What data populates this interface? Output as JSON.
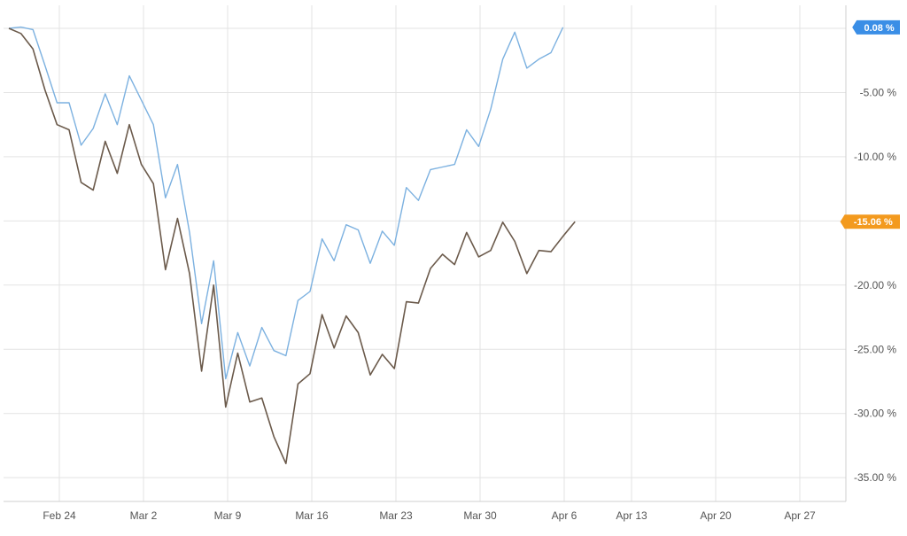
{
  "chart_data": {
    "type": "line",
    "title": "",
    "xlabel": "",
    "ylabel": "",
    "ylim": [
      -37,
      1.5
    ],
    "grid": true,
    "x_ticks": [
      "Feb 24",
      "Mar 2",
      "Mar 9",
      "Mar 16",
      "Mar 23",
      "Mar 30",
      "Apr 6",
      "Apr 13",
      "Apr 20",
      "Apr 27"
    ],
    "y_ticks": [
      -5,
      -10,
      -15,
      -20,
      -25,
      -30,
      -35
    ],
    "y_tick_labels": [
      "-5.00 %",
      "-10.00 %",
      "-15.00 %",
      "-20.00 %",
      "-25.00 %",
      "-30.00 %",
      "-35.00 %"
    ],
    "x_start": "2020-02-21",
    "x_axis_dates": [
      "2020-02-24",
      "2020-03-02",
      "2020-03-09",
      "2020-03-16",
      "2020-03-23",
      "2020-03-30",
      "2020-04-06",
      "2020-04-13",
      "2020-04-20",
      "2020-04-27"
    ],
    "series": [
      {
        "color": "#7cb1e0",
        "last_label": "0.08 %",
        "badge_color": "#3a8ee6",
        "points": [
          [
            "2020-02-19",
            0
          ],
          [
            "2020-02-20",
            0.1
          ],
          [
            "2020-02-21",
            -0.1
          ],
          [
            "2020-02-22",
            -2.9
          ],
          [
            "2020-02-23",
            -5.8
          ],
          [
            "2020-02-24",
            -5.8
          ],
          [
            "2020-02-25",
            -9.1
          ],
          [
            "2020-02-26",
            -7.8
          ],
          [
            "2020-02-27",
            -5.1
          ],
          [
            "2020-02-28",
            -7.5
          ],
          [
            "2020-02-29",
            -3.7
          ],
          [
            "2020-03-01",
            -5.6
          ],
          [
            "2020-03-02",
            -7.5
          ],
          [
            "2020-03-03",
            -13.2
          ],
          [
            "2020-03-04",
            -10.6
          ],
          [
            "2020-03-05",
            -15.9
          ],
          [
            "2020-03-06",
            -23.0
          ],
          [
            "2020-03-07",
            -18.1
          ],
          [
            "2020-03-08",
            -27.3
          ],
          [
            "2020-03-09",
            -23.7
          ],
          [
            "2020-03-10",
            -26.3
          ],
          [
            "2020-03-11",
            -23.3
          ],
          [
            "2020-03-12",
            -25.1
          ],
          [
            "2020-03-13",
            -25.5
          ],
          [
            "2020-03-14",
            -21.2
          ],
          [
            "2020-03-15",
            -20.5
          ],
          [
            "2020-03-16",
            -16.4
          ],
          [
            "2020-03-17",
            -18.1
          ],
          [
            "2020-03-18",
            -15.3
          ],
          [
            "2020-03-19",
            -15.7
          ],
          [
            "2020-03-20",
            -18.3
          ],
          [
            "2020-03-21",
            -15.8
          ],
          [
            "2020-03-22",
            -16.9
          ],
          [
            "2020-03-23",
            -12.4
          ],
          [
            "2020-03-24",
            -13.4
          ],
          [
            "2020-03-25",
            -11.0
          ],
          [
            "2020-03-26",
            -10.8
          ],
          [
            "2020-03-27",
            -10.6
          ],
          [
            "2020-03-28",
            -7.9
          ],
          [
            "2020-03-29",
            -9.2
          ],
          [
            "2020-03-30",
            -6.3
          ],
          [
            "2020-03-31",
            -2.4
          ],
          [
            "2020-04-01",
            -0.3
          ],
          [
            "2020-04-02",
            -3.1
          ],
          [
            "2020-04-03",
            -2.4
          ],
          [
            "2020-04-04",
            -1.9
          ],
          [
            "2020-04-05",
            0.08
          ]
        ]
      },
      {
        "color": "#6b5a4b",
        "last_label": "-15.06 %",
        "badge_color": "#f39a1e",
        "points": [
          [
            "2020-02-19",
            0
          ],
          [
            "2020-02-20",
            -0.4
          ],
          [
            "2020-02-21",
            -1.6
          ],
          [
            "2020-02-22",
            -4.8
          ],
          [
            "2020-02-23",
            -7.5
          ],
          [
            "2020-02-24",
            -7.9
          ],
          [
            "2020-02-25",
            -12.0
          ],
          [
            "2020-02-26",
            -12.6
          ],
          [
            "2020-02-27",
            -8.8
          ],
          [
            "2020-02-28",
            -11.3
          ],
          [
            "2020-02-29",
            -7.5
          ],
          [
            "2020-03-01",
            -10.6
          ],
          [
            "2020-03-02",
            -12.1
          ],
          [
            "2020-03-03",
            -18.8
          ],
          [
            "2020-03-04",
            -14.8
          ],
          [
            "2020-03-05",
            -19.1
          ],
          [
            "2020-03-06",
            -26.7
          ],
          [
            "2020-03-07",
            -20.0
          ],
          [
            "2020-03-08",
            -29.5
          ],
          [
            "2020-03-09",
            -25.3
          ],
          [
            "2020-03-10",
            -29.1
          ],
          [
            "2020-03-11",
            -28.8
          ],
          [
            "2020-03-12",
            -31.8
          ],
          [
            "2020-03-13",
            -33.9
          ],
          [
            "2020-03-14",
            -27.7
          ],
          [
            "2020-03-15",
            -26.9
          ],
          [
            "2020-03-16",
            -22.3
          ],
          [
            "2020-03-17",
            -24.9
          ],
          [
            "2020-03-18",
            -22.4
          ],
          [
            "2020-03-19",
            -23.7
          ],
          [
            "2020-03-20",
            -27.0
          ],
          [
            "2020-03-21",
            -25.4
          ],
          [
            "2020-03-22",
            -26.5
          ],
          [
            "2020-03-23",
            -21.3
          ],
          [
            "2020-03-24",
            -21.4
          ],
          [
            "2020-03-25",
            -18.7
          ],
          [
            "2020-03-26",
            -17.6
          ],
          [
            "2020-03-27",
            -18.4
          ],
          [
            "2020-03-28",
            -15.9
          ],
          [
            "2020-03-29",
            -17.8
          ],
          [
            "2020-03-30",
            -17.3
          ],
          [
            "2020-03-31",
            -15.1
          ],
          [
            "2020-04-01",
            -16.6
          ],
          [
            "2020-04-02",
            -19.1
          ],
          [
            "2020-04-03",
            -17.3
          ],
          [
            "2020-04-04",
            -17.4
          ],
          [
            "2020-04-05",
            -16.2
          ],
          [
            "2020-04-06",
            -15.06
          ]
        ]
      }
    ]
  }
}
